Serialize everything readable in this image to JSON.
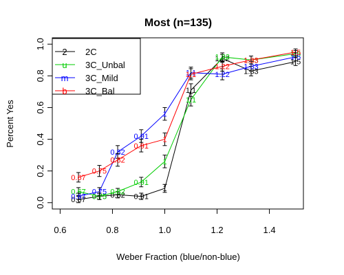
{
  "chart_data": {
    "type": "line",
    "title": "Most (n=135)",
    "xlabel": "Weber Fraction (blue/non-blue)",
    "ylabel": "Percent Yes",
    "xlim": [
      0.57,
      1.53
    ],
    "ylim": [
      -0.04,
      1.04
    ],
    "x_ticks": [
      0.6,
      0.8,
      1.0,
      1.2,
      1.4
    ],
    "x_tick_labels": [
      "0.6",
      "0.8",
      "1.0",
      "1.2",
      "1.4"
    ],
    "y_ticks": [
      0.0,
      0.2,
      0.4,
      0.6,
      0.8,
      1.0
    ],
    "y_tick_labels": [
      "0.0",
      "0.2",
      "0.4",
      "0.6",
      "0.8",
      "1.0"
    ],
    "legend": {
      "position": "top-left",
      "entries": [
        {
          "symbol": "2",
          "label": "2C",
          "color": "#000000"
        },
        {
          "symbol": "u",
          "label": "3C_Unbal",
          "color": "#00cc00"
        },
        {
          "symbol": "m",
          "label": "3C_Mild",
          "color": "#0000ff"
        },
        {
          "symbol": "b",
          "label": "3C_Bal",
          "color": "#ff0000"
        }
      ]
    },
    "series": [
      {
        "name": "2C",
        "color": "#000000",
        "points": [
          {
            "x": 0.67,
            "y": 0.02,
            "err": 0.02,
            "label": "0.67"
          },
          {
            "x": 0.75,
            "y": 0.04,
            "err": 0.02,
            "label": "0.75"
          },
          {
            "x": 0.82,
            "y": 0.05,
            "err": 0.02,
            "label": "0.82"
          },
          {
            "x": 0.91,
            "y": 0.04,
            "err": 0.02,
            "label": "0.91"
          },
          {
            "x": 1.0,
            "y": 0.09,
            "err": 0.025,
            "label": "1"
          },
          {
            "x": 1.1,
            "y": 0.71,
            "err": 0.04,
            "label": "1.1"
          },
          {
            "x": 1.22,
            "y": 0.91,
            "err": 0.025,
            "label": "1.22"
          },
          {
            "x": 1.33,
            "y": 0.83,
            "err": 0.03,
            "label": "1.33"
          },
          {
            "x": 1.5,
            "y": 0.89,
            "err": 0.025,
            "label": "1.5"
          }
        ]
      },
      {
        "name": "3C_Unbal",
        "color": "#00cc00",
        "points": [
          {
            "x": 0.67,
            "y": 0.07,
            "err": 0.025,
            "label": "0.67"
          },
          {
            "x": 0.75,
            "y": 0.04,
            "err": 0.02,
            "label": "0.75"
          },
          {
            "x": 0.82,
            "y": 0.07,
            "err": 0.02,
            "label": "0.82"
          },
          {
            "x": 0.91,
            "y": 0.13,
            "err": 0.03,
            "label": "0.91"
          },
          {
            "x": 1.0,
            "y": 0.26,
            "err": 0.04,
            "label": "1"
          },
          {
            "x": 1.1,
            "y": 0.65,
            "err": 0.04,
            "label": "1.1"
          },
          {
            "x": 1.22,
            "y": 0.92,
            "err": 0.025,
            "label": "1.22"
          },
          {
            "x": 1.33,
            "y": 0.9,
            "err": 0.025,
            "label": "1.33"
          },
          {
            "x": 1.5,
            "y": 0.94,
            "err": 0.02,
            "label": "1.5"
          }
        ]
      },
      {
        "name": "3C_Mild",
        "color": "#0000ff",
        "points": [
          {
            "x": 0.67,
            "y": 0.04,
            "err": 0.02,
            "label": "0.67"
          },
          {
            "x": 0.75,
            "y": 0.07,
            "err": 0.025,
            "label": "0.75"
          },
          {
            "x": 0.82,
            "y": 0.32,
            "err": 0.04,
            "label": "0.82"
          },
          {
            "x": 0.91,
            "y": 0.42,
            "err": 0.04,
            "label": "0.91"
          },
          {
            "x": 1.0,
            "y": 0.56,
            "err": 0.04,
            "label": "1"
          },
          {
            "x": 1.1,
            "y": 0.82,
            "err": 0.035,
            "label": "1.1"
          },
          {
            "x": 1.22,
            "y": 0.81,
            "err": 0.035,
            "label": "1.22"
          },
          {
            "x": 1.33,
            "y": 0.86,
            "err": 0.03,
            "label": "1.33"
          },
          {
            "x": 1.5,
            "y": 0.92,
            "err": 0.025,
            "label": "1.5"
          }
        ]
      },
      {
        "name": "3C_Bal",
        "color": "#ff0000",
        "points": [
          {
            "x": 0.67,
            "y": 0.16,
            "err": 0.03,
            "label": "0.67"
          },
          {
            "x": 0.75,
            "y": 0.2,
            "err": 0.035,
            "label": "0.75"
          },
          {
            "x": 0.82,
            "y": 0.27,
            "err": 0.04,
            "label": "0.82"
          },
          {
            "x": 0.91,
            "y": 0.36,
            "err": 0.04,
            "label": "0.91"
          },
          {
            "x": 1.0,
            "y": 0.4,
            "err": 0.04,
            "label": "1"
          },
          {
            "x": 1.1,
            "y": 0.81,
            "err": 0.035,
            "label": "1.1"
          },
          {
            "x": 1.22,
            "y": 0.86,
            "err": 0.03,
            "label": "1.22"
          },
          {
            "x": 1.33,
            "y": 0.9,
            "err": 0.025,
            "label": "1.33"
          },
          {
            "x": 1.5,
            "y": 0.95,
            "err": 0.02,
            "label": "1.5"
          }
        ]
      }
    ]
  }
}
